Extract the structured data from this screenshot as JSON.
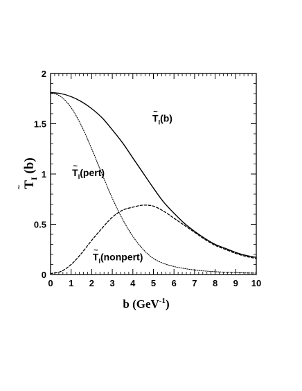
{
  "chart_data": {
    "type": "line",
    "title": "",
    "xlabel": "b (GeV",
    "xlabel_sup": "-1",
    "xlabel_close": ")",
    "ylabel": "T",
    "ylabel_sub": "I",
    "ylabel_tail": " (b)",
    "xlim": [
      0,
      10
    ],
    "ylim": [
      0,
      2
    ],
    "x_ticks": [
      0,
      1,
      2,
      3,
      4,
      5,
      6,
      7,
      8,
      9,
      10
    ],
    "y_ticks": [
      0,
      0.5,
      1,
      1.5,
      2
    ],
    "y_tick_labels": [
      "0",
      "0.5",
      "1",
      "1.5",
      "2"
    ],
    "grid": false,
    "legend": "none",
    "x": [
      0,
      0.5,
      1,
      1.5,
      2,
      2.5,
      3,
      3.5,
      4,
      4.5,
      5,
      5.5,
      6,
      6.5,
      7,
      7.5,
      8,
      8.5,
      9,
      9.5,
      10
    ],
    "series": [
      {
        "name": "T̃I(b)",
        "style": "solid",
        "values": [
          1.81,
          1.8,
          1.77,
          1.72,
          1.65,
          1.56,
          1.44,
          1.31,
          1.16,
          1.01,
          0.86,
          0.72,
          0.61,
          0.51,
          0.43,
          0.36,
          0.3,
          0.26,
          0.22,
          0.19,
          0.17
        ]
      },
      {
        "name": "T̃I(pert)",
        "style": "dotted",
        "values": [
          1.81,
          1.77,
          1.66,
          1.48,
          1.25,
          1.0,
          0.76,
          0.55,
          0.38,
          0.25,
          0.16,
          0.11,
          0.08,
          0.06,
          0.045,
          0.035,
          0.028,
          0.023,
          0.019,
          0.016,
          0.014
        ]
      },
      {
        "name": "T̃I(nonpert)",
        "style": "dashed",
        "values": [
          0.01,
          0.03,
          0.1,
          0.21,
          0.34,
          0.46,
          0.57,
          0.64,
          0.67,
          0.69,
          0.68,
          0.63,
          0.56,
          0.49,
          0.42,
          0.35,
          0.29,
          0.25,
          0.21,
          0.18,
          0.16
        ]
      }
    ],
    "annotations": [
      {
        "id": "total",
        "main": "T",
        "sub": "I",
        "tail": "(b)",
        "at": [
          4.95,
          1.52
        ]
      },
      {
        "id": "pert",
        "main": "T",
        "sub": "I",
        "tail": "(pert)",
        "at": [
          1.05,
          0.98
        ]
      },
      {
        "id": "nonpert",
        "main": "T",
        "sub": "I",
        "tail": "(nonpert)",
        "at": [
          2.05,
          0.14
        ]
      }
    ]
  }
}
